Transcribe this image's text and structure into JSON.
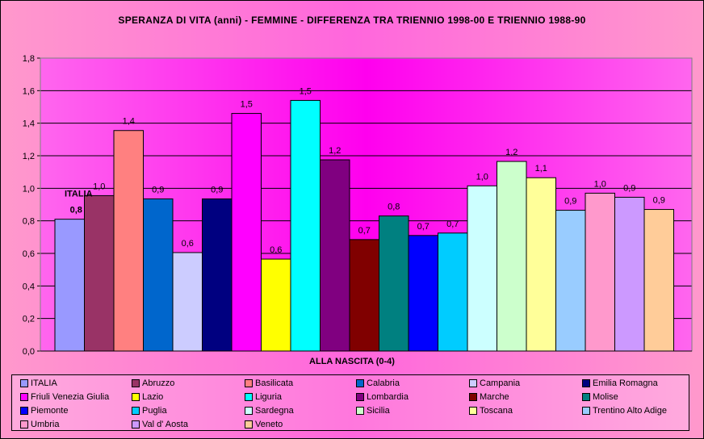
{
  "chart_data": {
    "type": "bar",
    "title": "SPERANZA DI VITA (anni) - FEMMINE - DIFFERENZA TRA TRIENNIO 1998-00 E TRIENNIO 1988-90",
    "xlabel": "ALLA NASCITA (0-4)",
    "ylim": [
      0,
      1.8
    ],
    "yticks": [
      "0,0",
      "0,2",
      "0,4",
      "0,6",
      "0,8",
      "1,0",
      "1,2",
      "1,4",
      "1,6",
      "1,8"
    ],
    "grid": true,
    "legend_position": "bottom",
    "italia_annotation": {
      "label": "ITALIA",
      "value_label": "0,8"
    },
    "categories": [
      "ITALIA",
      "Abruzzo",
      "Basilicata",
      "Calabria",
      "Campania",
      "Emilia Romagna",
      "Friuli Venezia Giulia",
      "Lazio",
      "Liguria",
      "Lombardia",
      "Marche",
      "Molise",
      "Piemonte",
      "Puglia",
      "Sardegna",
      "Sicilia",
      "Toscana",
      "Trentino Alto Adige",
      "Umbria",
      "Val d' Aosta",
      "Veneto"
    ],
    "values": [
      0.81,
      0.955,
      1.355,
      0.935,
      0.605,
      0.935,
      1.46,
      0.565,
      1.54,
      1.175,
      0.685,
      0.83,
      0.71,
      0.725,
      1.015,
      1.165,
      1.065,
      0.865,
      0.97,
      0.945,
      0.87
    ],
    "value_labels": [
      "",
      "1,0",
      "1,4",
      "0,9",
      "0,6",
      "0,9",
      "1,5",
      "0,6",
      "1,5",
      "1,2",
      "0,7",
      "0,8",
      "0,7",
      "0,7",
      "1,0",
      "1,2",
      "1,1",
      "0,9",
      "1,0",
      "0,9",
      "0,9"
    ],
    "colors": [
      "#9999ff",
      "#993366",
      "#ff8080",
      "#0066cc",
      "#ccccff",
      "#000080",
      "#ff00ff",
      "#ffff00",
      "#00ffff",
      "#800080",
      "#800000",
      "#008080",
      "#0000ff",
      "#00ccff",
      "#ccffff",
      "#ccffcc",
      "#ffff99",
      "#99ccff",
      "#ff99cc",
      "#cc99ff",
      "#ffcc99"
    ]
  }
}
